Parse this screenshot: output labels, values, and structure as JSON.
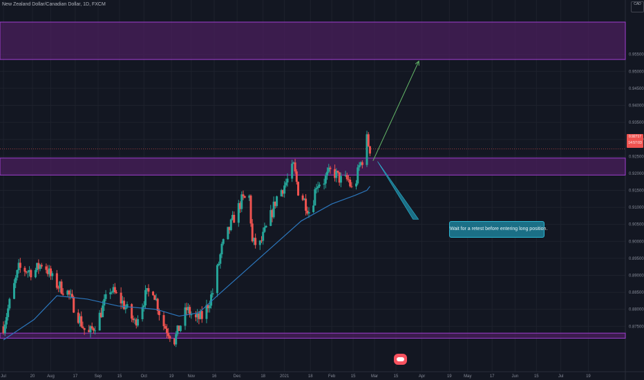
{
  "app": {
    "symbol_title": "New Zealand Dollar/Canadian Dollar, 1D, FXCM",
    "currency": "CAD",
    "last_price": "0.92717",
    "countdown": "14:57:03"
  },
  "annotation": {
    "note": "Wait for a retest before entering long position."
  },
  "colors": {
    "background": "#131722",
    "up_candle": "#26a69a",
    "down_candle": "#ef5350",
    "ma_line": "#2c77bd",
    "zone_fill": "#4a1f5c",
    "zone_border": "#a13fd1",
    "target_arrow": "#66bb6a",
    "note_box": "#1b6f86"
  },
  "chart_data": {
    "type": "candlestick",
    "title": "New Zealand Dollar/Canadian Dollar, 1D, FXCM",
    "y_unit": "CAD",
    "ylim": [
      0.8715,
      0.971
    ],
    "y_ticks": [
      0.875,
      0.88,
      0.885,
      0.89,
      0.895,
      0.9,
      0.905,
      0.91,
      0.915,
      0.92,
      0.925,
      0.93,
      0.935,
      0.94,
      0.945,
      0.95,
      0.955
    ],
    "y_tick_labels": [
      "0.87500",
      "0.88000",
      "0.88500",
      "0.89000",
      "0.89500",
      "0.90000",
      "0.90500",
      "0.91000",
      "0.91500",
      "0.92000",
      "0.92500",
      "0.93000",
      "0.93500",
      "0.94000",
      "0.94500",
      "0.95000",
      "0.95500"
    ],
    "x_ticks": [
      {
        "label": "Jul",
        "day": 0
      },
      {
        "label": "20",
        "day": 19
      },
      {
        "label": "Aug",
        "day": 31
      },
      {
        "label": "17",
        "day": 47
      },
      {
        "label": "Sep",
        "day": 62
      },
      {
        "label": "15",
        "day": 76
      },
      {
        "label": "Oct",
        "day": 92
      },
      {
        "label": "19",
        "day": 110
      },
      {
        "label": "Nov",
        "day": 123
      },
      {
        "label": "16",
        "day": 138
      },
      {
        "label": "Dec",
        "day": 153
      },
      {
        "label": "18",
        "day": 170
      },
      {
        "label": "2021",
        "day": 184
      },
      {
        "label": "18",
        "day": 201
      },
      {
        "label": "Feb",
        "day": 215
      },
      {
        "label": "15",
        "day": 229
      },
      {
        "label": "Mar",
        "day": 243
      },
      {
        "label": "15",
        "day": 257
      },
      {
        "label": "Apr",
        "day": 274
      },
      {
        "label": "19",
        "day": 292
      },
      {
        "label": "May",
        "day": 304
      },
      {
        "label": "17",
        "day": 320
      },
      {
        "label": "Jun",
        "day": 335
      },
      {
        "label": "15",
        "day": 349
      },
      {
        "label": "Jul",
        "day": 365
      },
      {
        "label": "19",
        "day": 383
      }
    ],
    "price_key_points": [
      {
        "day": 0,
        "price": 0.875
      },
      {
        "day": 10,
        "price": 0.892
      },
      {
        "day": 20,
        "price": 0.891
      },
      {
        "day": 26,
        "price": 0.894
      },
      {
        "day": 33,
        "price": 0.888
      },
      {
        "day": 42,
        "price": 0.885
      },
      {
        "day": 48,
        "price": 0.879
      },
      {
        "day": 55,
        "price": 0.872
      },
      {
        "day": 62,
        "price": 0.877
      },
      {
        "day": 70,
        "price": 0.886
      },
      {
        "day": 78,
        "price": 0.882
      },
      {
        "day": 86,
        "price": 0.876
      },
      {
        "day": 93,
        "price": 0.884
      },
      {
        "day": 98,
        "price": 0.886
      },
      {
        "day": 104,
        "price": 0.876
      },
      {
        "day": 112,
        "price": 0.871
      },
      {
        "day": 120,
        "price": 0.88
      },
      {
        "day": 126,
        "price": 0.877
      },
      {
        "day": 131,
        "price": 0.878
      },
      {
        "day": 137,
        "price": 0.885
      },
      {
        "day": 143,
        "price": 0.898
      },
      {
        "day": 150,
        "price": 0.906
      },
      {
        "day": 156,
        "price": 0.912
      },
      {
        "day": 161,
        "price": 0.913
      },
      {
        "day": 163,
        "price": 0.8995
      },
      {
        "day": 168,
        "price": 0.899
      },
      {
        "day": 174,
        "price": 0.906
      },
      {
        "day": 179,
        "price": 0.913
      },
      {
        "day": 186,
        "price": 0.918
      },
      {
        "day": 190,
        "price": 0.922
      },
      {
        "day": 193,
        "price": 0.915
      },
      {
        "day": 197,
        "price": 0.912
      },
      {
        "day": 201,
        "price": 0.908
      },
      {
        "day": 205,
        "price": 0.917
      },
      {
        "day": 210,
        "price": 0.918
      },
      {
        "day": 215,
        "price": 0.921
      },
      {
        "day": 221,
        "price": 0.918
      },
      {
        "day": 226,
        "price": 0.918
      },
      {
        "day": 229,
        "price": 0.914
      },
      {
        "day": 233,
        "price": 0.922
      },
      {
        "day": 236,
        "price": 0.925
      },
      {
        "day": 238,
        "price": 0.93
      },
      {
        "day": 240,
        "price": 0.9272
      }
    ],
    "moving_average": [
      {
        "day": 0,
        "price": 0.871
      },
      {
        "day": 20,
        "price": 0.877
      },
      {
        "day": 35,
        "price": 0.884
      },
      {
        "day": 55,
        "price": 0.883
      },
      {
        "day": 75,
        "price": 0.881
      },
      {
        "day": 100,
        "price": 0.88
      },
      {
        "day": 115,
        "price": 0.878
      },
      {
        "day": 128,
        "price": 0.879
      },
      {
        "day": 140,
        "price": 0.884
      },
      {
        "day": 155,
        "price": 0.89
      },
      {
        "day": 175,
        "price": 0.898
      },
      {
        "day": 195,
        "price": 0.906
      },
      {
        "day": 215,
        "price": 0.911
      },
      {
        "day": 230,
        "price": 0.9135
      },
      {
        "day": 238,
        "price": 0.915
      },
      {
        "day": 240,
        "price": 0.9162
      }
    ],
    "zones": [
      {
        "name": "supply-zone-top",
        "low": 0.9535,
        "high": 0.9645
      },
      {
        "name": "retest-zone",
        "low": 0.9195,
        "high": 0.9245
      },
      {
        "name": "bottom-zone",
        "low": 0.8715,
        "high": 0.873
      }
    ],
    "last_price": 0.92717,
    "arrows": [
      {
        "name": "target-arrow",
        "from": {
          "day": 242,
          "price": 0.9237
        },
        "to": {
          "day": 272,
          "price": 0.953
        }
      },
      {
        "name": "note-pointer",
        "from": {
          "day": 245,
          "price": 0.9235
        },
        "to": {
          "day": 270,
          "price": 0.9065
        }
      }
    ]
  }
}
